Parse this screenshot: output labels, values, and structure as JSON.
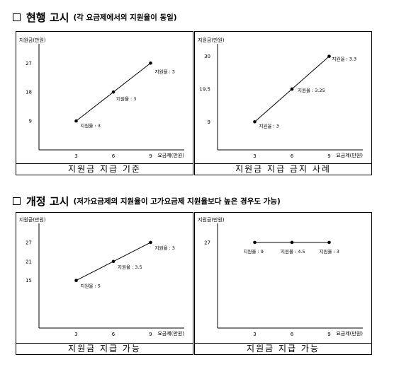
{
  "sections": [
    {
      "title": "현행 고시",
      "subtitle": "(각 요금제에서의 지원율이 동일)",
      "panels": [
        {
          "caption": "지원금 지급 기준"
        },
        {
          "caption": "지원금 지급 금지 사례"
        }
      ]
    },
    {
      "title": "개정 고시",
      "subtitle": "(저가요금제의 지원율이 고가요금제 지원율보다 높은 경우도 가능)",
      "panels": [
        {
          "caption": "지원금 지급 가능"
        },
        {
          "caption": "지원금 지급 가능"
        }
      ]
    }
  ],
  "chart_data": [
    {
      "type": "line",
      "xlabel": "요금제(만원)",
      "ylabel": "지원금(만원)",
      "x_ticks": [
        3,
        6,
        9
      ],
      "y_ticks": [
        9,
        18,
        27
      ],
      "xlim": [
        0,
        12
      ],
      "ylim": [
        0,
        33
      ],
      "series": [
        {
          "x": [
            3,
            6,
            9
          ],
          "y": [
            9,
            18,
            27
          ],
          "labels": [
            "지원율 : 3",
            "지원율 : 3",
            "지원율 : 3"
          ]
        }
      ],
      "line_color": "#000000"
    },
    {
      "type": "line",
      "xlabel": "요금제(만원)",
      "ylabel": "지원금(만원)",
      "x_ticks": [
        3,
        6,
        9
      ],
      "y_ticks": [
        9,
        19.5,
        30
      ],
      "xlim": [
        0,
        12
      ],
      "ylim": [
        0,
        34
      ],
      "series": [
        {
          "x": [
            3,
            6,
            9
          ],
          "y": [
            9,
            19.5,
            30
          ],
          "labels": [
            "지원율 : 3",
            "지원율 : 3.25",
            "지원율 : 3.3"
          ]
        }
      ],
      "line_color": "#000000"
    },
    {
      "type": "line",
      "xlabel": "요금제(만원)",
      "ylabel": "지원금(만원)",
      "x_ticks": [
        3,
        6,
        9
      ],
      "y_ticks": [
        15,
        21,
        27
      ],
      "xlim": [
        0,
        12
      ],
      "ylim": [
        0,
        33
      ],
      "series": [
        {
          "x": [
            3,
            6,
            9
          ],
          "y": [
            15,
            21,
            27
          ],
          "labels": [
            "지원율 : 5",
            "지원율 : 3.5",
            "지원율 : 3"
          ]
        }
      ],
      "line_color": "#000000"
    },
    {
      "type": "line",
      "xlabel": "요금제(만원)",
      "ylabel": "지원금(만원)",
      "x_ticks": [
        3,
        6,
        9
      ],
      "y_ticks": [
        27
      ],
      "xlim": [
        0,
        12
      ],
      "ylim": [
        0,
        33
      ],
      "series": [
        {
          "x": [
            3,
            6,
            9
          ],
          "y": [
            27,
            27,
            27
          ],
          "labels": [
            "지원율 : 9",
            "지원율 : 4.5",
            "지원율 : 3"
          ]
        }
      ],
      "line_color": "#000000"
    }
  ]
}
